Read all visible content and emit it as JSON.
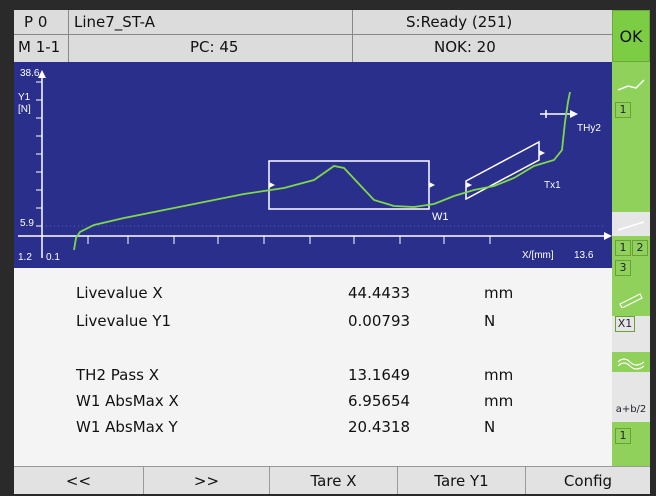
{
  "header": {
    "program": "P 0",
    "line": "Line7_ST-A",
    "status": "S:Ready (251)",
    "ok": "OK",
    "mode": "M 1-1",
    "pc": "PC: 45",
    "nok": "NOK: 20"
  },
  "plot": {
    "y_axis_label_top": "Y1",
    "y_axis_unit": "[N]",
    "y_max": "38.6",
    "y_mid": "5.9",
    "y_min": "1.2",
    "x_min": "0.1",
    "x_axis_unit": "X/[mm]",
    "x_max": "13.6",
    "window_label": "W1",
    "threshold_label": "THy2",
    "tx_label": "Tx1"
  },
  "side_panel": {
    "box1": "1",
    "box2": "1",
    "box3": "2",
    "box4": "3",
    "box5": "X1",
    "formula": "a+b/2",
    "box6": "1"
  },
  "values": [
    {
      "label": "Livevalue X",
      "value": "44.4433",
      "unit": "mm"
    },
    {
      "label": "Livevalue Y1",
      "value": "0.00793",
      "unit": "N"
    },
    {
      "label": "TH2 Pass X",
      "value": "13.1649",
      "unit": "mm"
    },
    {
      "label": "W1 AbsMax X",
      "value": "6.95654",
      "unit": "mm"
    },
    {
      "label": "W1 AbsMax Y",
      "value": "20.4318",
      "unit": "N"
    }
  ],
  "toolbar": {
    "prev": "<<",
    "next": ">>",
    "tare_x": "Tare X",
    "tare_y1": "Tare Y1",
    "config": "Config"
  },
  "colors": {
    "plot_bg": "#2b2f8c",
    "curve": "#7dd84a",
    "ok_green": "#7ccc44"
  }
}
